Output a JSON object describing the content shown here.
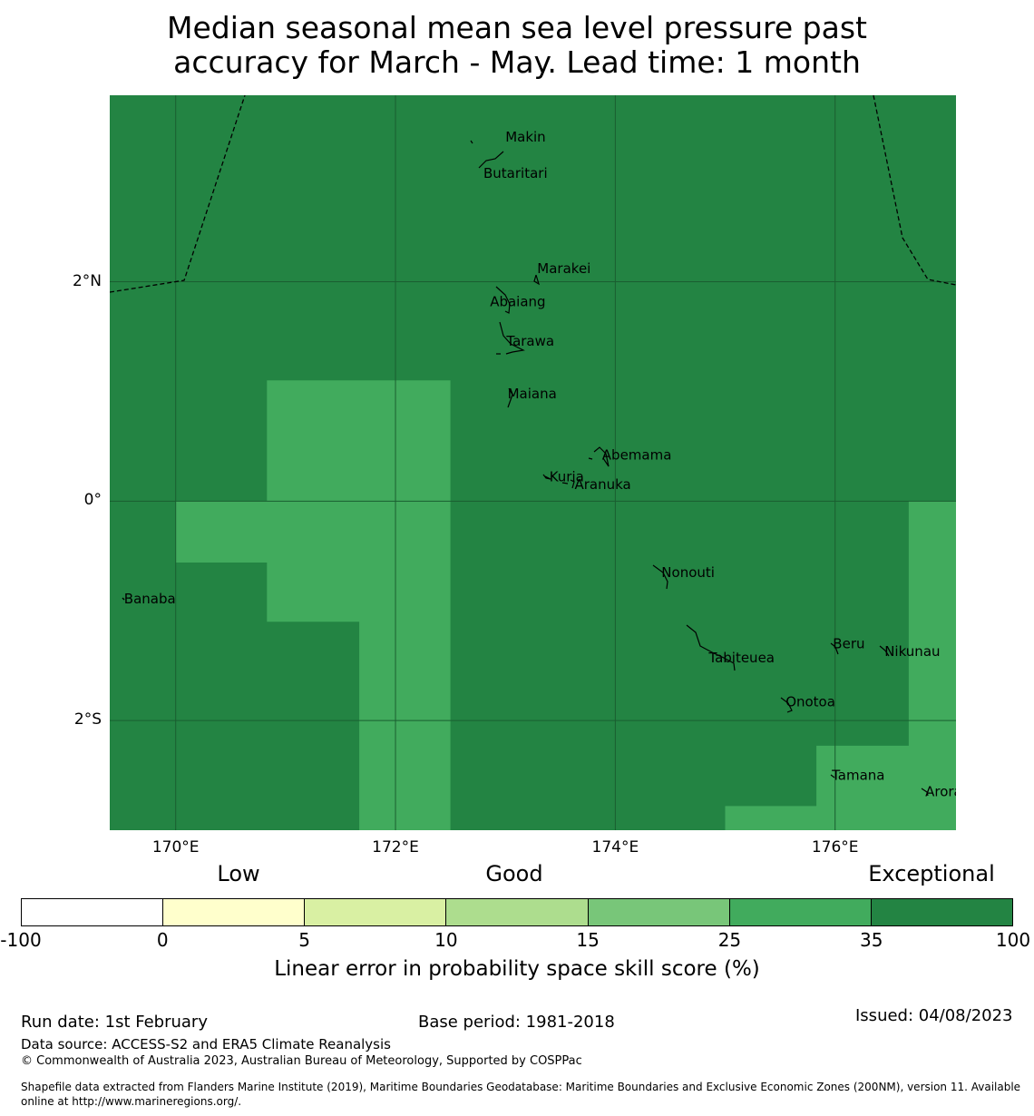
{
  "title": {
    "line1": "Median seasonal mean sea level pressure past",
    "line2": "accuracy for March - May. Lead time: 1 month"
  },
  "map": {
    "lat_range": [
      -3.0,
      3.7
    ],
    "lon_range": [
      169.4,
      177.1
    ],
    "latitude_labels": [
      {
        "value": 2,
        "text": "2°N"
      },
      {
        "value": 0,
        "text": "0°"
      },
      {
        "value": -2,
        "text": "2°S"
      }
    ],
    "longitude_labels": [
      {
        "value": 170,
        "text": "170°E"
      },
      {
        "value": 172,
        "text": "172°E"
      },
      {
        "value": 174,
        "text": "174°E"
      },
      {
        "value": 176,
        "text": "176°E"
      }
    ],
    "background_category": "35 to 100",
    "background_color": "#238443",
    "lighter_category": "25 to 35",
    "lighter_color": "#41ab5d",
    "lighter_regions_lonlat": [
      [
        [
          170.83,
          1.1
        ],
        [
          172.5,
          1.1
        ],
        [
          172.5,
          -3.0
        ],
        [
          171.67,
          -3.0
        ],
        [
          171.67,
          -1.1
        ],
        [
          170.83,
          -1.1
        ],
        [
          170.83,
          -0.56
        ],
        [
          170.0,
          -0.56
        ],
        [
          170.0,
          0.0
        ],
        [
          170.83,
          0.0
        ]
      ],
      [
        [
          176.67,
          0.0
        ],
        [
          177.1,
          0.0
        ],
        [
          177.1,
          -3.0
        ],
        [
          175.0,
          -3.0
        ],
        [
          175.0,
          -2.78
        ],
        [
          175.83,
          -2.78
        ],
        [
          175.83,
          -2.23
        ],
        [
          176.67,
          -2.23
        ]
      ]
    ],
    "places": [
      {
        "name": "Makin",
        "lon": 173.0,
        "lat": 3.32
      },
      {
        "name": "Butaritari",
        "lon": 172.8,
        "lat": 2.99
      },
      {
        "name": "Marakei",
        "lon": 173.29,
        "lat": 2.12
      },
      {
        "name": "Abaiang",
        "lon": 172.86,
        "lat": 1.82
      },
      {
        "name": "Tarawa",
        "lon": 173.01,
        "lat": 1.46
      },
      {
        "name": "Maiana",
        "lon": 173.02,
        "lat": 0.98
      },
      {
        "name": "Abemama",
        "lon": 173.88,
        "lat": 0.42
      },
      {
        "name": "Kuria",
        "lon": 173.4,
        "lat": 0.22
      },
      {
        "name": "Aranuka",
        "lon": 173.63,
        "lat": 0.15
      },
      {
        "name": "Nonouti",
        "lon": 174.42,
        "lat": -0.65
      },
      {
        "name": "Banaba",
        "lon": 169.53,
        "lat": -0.89
      },
      {
        "name": "Tabiteuea",
        "lon": 174.85,
        "lat": -1.43
      },
      {
        "name": "Beru",
        "lon": 175.98,
        "lat": -1.3
      },
      {
        "name": "Nikunau",
        "lon": 176.45,
        "lat": -1.37
      },
      {
        "name": "Onotoa",
        "lon": 175.55,
        "lat": -1.83
      },
      {
        "name": "Tamana",
        "lon": 175.97,
        "lat": -2.5
      },
      {
        "name": "Arorae",
        "lon": 176.82,
        "lat": -2.65
      }
    ]
  },
  "legend": {
    "categories": [
      {
        "text": "Low"
      },
      {
        "text": "Good"
      },
      {
        "text": "Exceptional"
      }
    ],
    "colors": [
      "#ffffff",
      "#ffffcc",
      "#d9f0a3",
      "#addd8e",
      "#78c679",
      "#41ab5d",
      "#238443"
    ],
    "ticks": [
      "-100",
      "0",
      "5",
      "10",
      "15",
      "25",
      "35",
      "100"
    ],
    "label": "Linear error in probability space skill score (%)"
  },
  "footer": {
    "run_date": "Run date: 1st February",
    "base_period": "Base period: 1981-2018",
    "issued": "Issued: 04/08/2023",
    "data_source": "Data source: ACCESS-S2 and ERA5 Climate Reanalysis",
    "copyright": "© Commonwealth of Australia 2023, Australian Bureau of Meteorology, Supported by COSPPac",
    "shapefile_line1": "Shapefile data extracted from Flanders Marine Institute (2019), Maritime Boundaries Geodatabase: Maritime Boundaries and Exclusive Economic Zones (200NM), version 11. Available",
    "shapefile_line2": "online at http://www.marineregions.org/."
  }
}
